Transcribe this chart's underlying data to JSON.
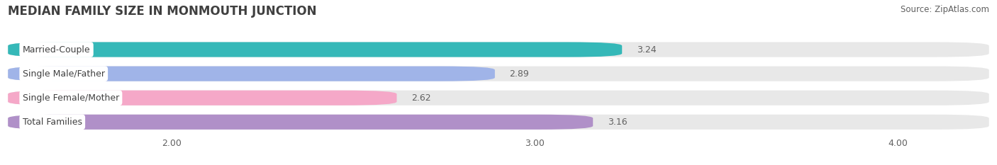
{
  "title": "MEDIAN FAMILY SIZE IN MONMOUTH JUNCTION",
  "source": "Source: ZipAtlas.com",
  "categories": [
    "Married-Couple",
    "Single Male/Father",
    "Single Female/Mother",
    "Total Families"
  ],
  "values": [
    3.24,
    2.89,
    2.62,
    3.16
  ],
  "bar_colors": [
    "#35b8b8",
    "#a0b4e8",
    "#f5a8c8",
    "#b090c8"
  ],
  "bar_height": 0.62,
  "xmin": 1.55,
  "xmax": 4.25,
  "xticks": [
    2.0,
    3.0,
    4.0
  ],
  "xtick_labels": [
    "2.00",
    "3.00",
    "4.00"
  ],
  "background_color": "#ffffff",
  "bar_background_color": "#e8e8e8",
  "title_fontsize": 12,
  "label_fontsize": 9,
  "value_fontsize": 9,
  "source_fontsize": 8.5,
  "title_color": "#404040",
  "label_text_color": "#404040",
  "value_color": "#606060",
  "source_color": "#606060",
  "grid_color": "#ffffff",
  "row_bg_color": "#f0f0f0"
}
